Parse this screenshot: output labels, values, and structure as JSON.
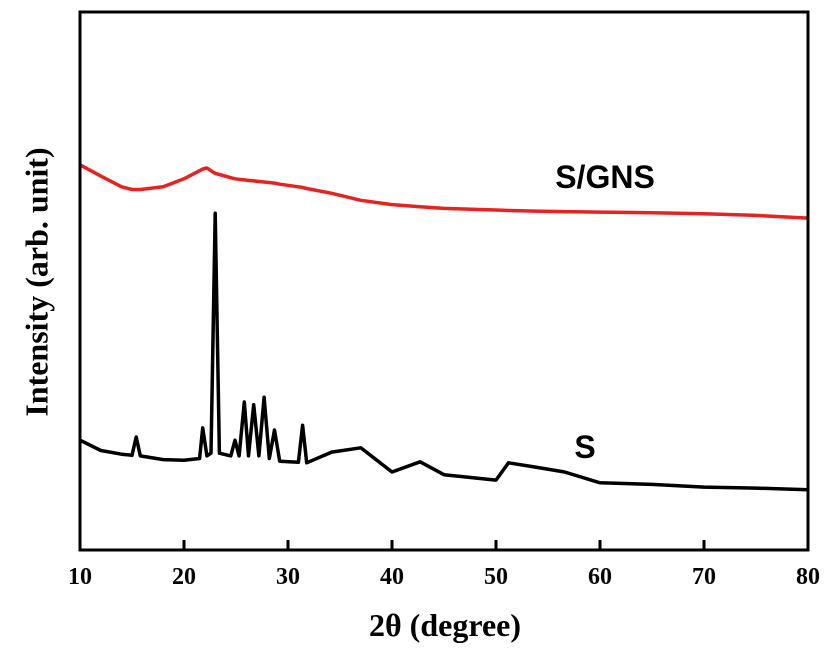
{
  "chart_data": {
    "type": "line",
    "xlabel": "2θ (degree)",
    "ylabel": "Intensity (arb. unit)",
    "xlim": [
      10,
      80
    ],
    "xticks": [
      10,
      20,
      30,
      40,
      50,
      60,
      70,
      80
    ],
    "ylim": [
      0,
      100
    ],
    "x": [
      10,
      12,
      14,
      15,
      15.4,
      15.8,
      18,
      20,
      21.5,
      21.8,
      22.2,
      22.6,
      23,
      23.4,
      24.5,
      24.9,
      25.3,
      25.8,
      26.2,
      26.7,
      27.2,
      27.7,
      28.2,
      28.7,
      29.2,
      31,
      31.4,
      31.8,
      34.2,
      37,
      40,
      42.7,
      45,
      50,
      51.2,
      53.8,
      56.6,
      60,
      65,
      70,
      75,
      80
    ],
    "series": [
      {
        "name": "S/GNS",
        "color": "#e8231f",
        "values": [
          71.6,
          69.5,
          67.5,
          67,
          67,
          67,
          67.5,
          69,
          70.5,
          70.8,
          71,
          70.5,
          70,
          69.8,
          69.2,
          69,
          68.9,
          68.8,
          68.7,
          68.6,
          68.5,
          68.4,
          68.3,
          68.2,
          68,
          67.5,
          67.4,
          67.2,
          66.3,
          65,
          64.2,
          63.8,
          63.5,
          63.2,
          63.1,
          63,
          62.9,
          62.8,
          62.7,
          62.5,
          62.2,
          61.7
        ]
      },
      {
        "name": "S",
        "color": "#000000",
        "values": [
          20.4,
          18.5,
          17.8,
          17.6,
          21,
          17.5,
          16.8,
          16.7,
          17,
          22.7,
          17.5,
          18,
          62.6,
          18,
          17.5,
          20.4,
          17.5,
          27.5,
          17.5,
          27,
          17.5,
          28.4,
          17,
          22.3,
          16.5,
          16.3,
          23.2,
          16.2,
          18.2,
          19,
          14.5,
          16.4,
          14,
          13,
          16.2,
          15.4,
          14.5,
          12.5,
          12.2,
          11.7,
          11.5,
          11.2
        ]
      }
    ]
  }
}
